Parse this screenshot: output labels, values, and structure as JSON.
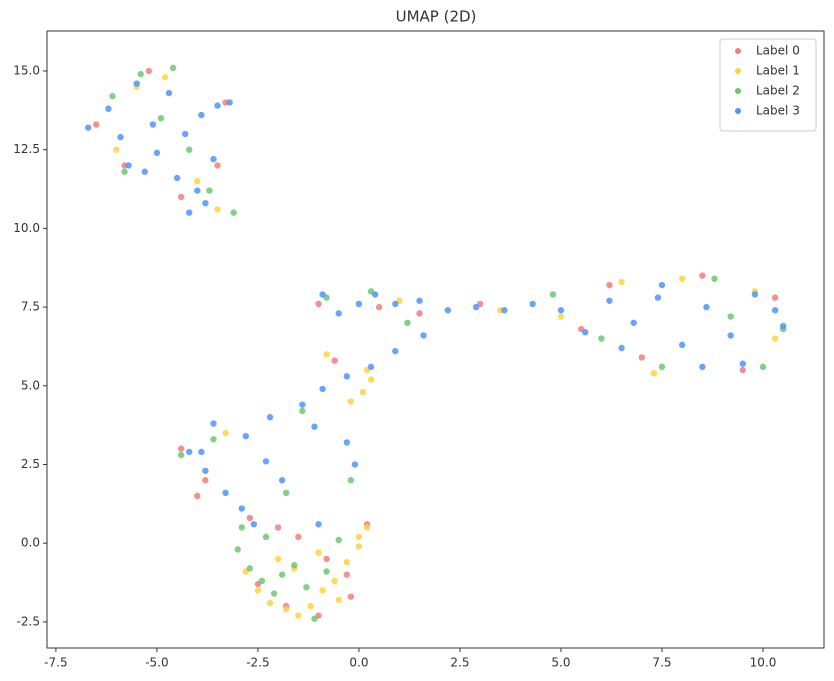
{
  "chart_data": {
    "type": "scatter",
    "title": "UMAP (2D)",
    "xlim": [
      -7.72,
      11.51
    ],
    "ylim": [
      -3.33,
      16.27
    ],
    "xticks": [
      -7.5,
      {
        "value": -5,
        "label": "-5.0"
      },
      -2.5,
      {
        "value": 0,
        "label": "0.0"
      },
      2.5,
      {
        "value": 5,
        "label": "5.0"
      },
      7.5,
      {
        "value": 10,
        "label": "10.0"
      }
    ],
    "yticks": [
      -2.5,
      {
        "value": 0,
        "label": "0.0"
      },
      2.5,
      {
        "value": 5,
        "label": "5.0"
      },
      7.5,
      {
        "value": 10,
        "label": "10.0"
      },
      12.5,
      {
        "value": 15,
        "label": "15.0"
      }
    ],
    "grid": false,
    "legend": "upper right",
    "series": [
      {
        "name": "Label 0",
        "color": "#f47c7c",
        "x": [
          -6.5,
          -5.2,
          -4.4,
          -3.3,
          -5.8,
          -1.0,
          0.5,
          1.5,
          3.0,
          5.5,
          7.0,
          8.5,
          9.5,
          10.3,
          6.2,
          -4.0,
          -3.8,
          -2.0,
          -1.5,
          -0.8,
          -0.3,
          0.2,
          -2.5,
          -1.8,
          -1.0,
          -0.2,
          -3.5,
          -4.4,
          -2.7,
          -0.6
        ],
        "values": [
          13.3,
          15.0,
          11.0,
          14.0,
          12.0,
          7.6,
          7.5,
          7.3,
          7.6,
          6.8,
          5.9,
          8.5,
          5.5,
          7.8,
          8.2,
          1.5,
          2.0,
          0.5,
          0.2,
          -0.5,
          -1.0,
          0.6,
          -1.3,
          -2.0,
          -2.3,
          -1.7,
          12.0,
          3.0,
          0.8,
          5.8
        ]
      },
      {
        "name": "Label 1",
        "color": "#ffd43b",
        "x": [
          -2.5,
          -2.2,
          -1.8,
          -1.5,
          -1.2,
          -0.9,
          -0.6,
          -0.3,
          0.0,
          0.2,
          -1.6,
          -1.0,
          -0.5,
          -2.0,
          -2.8,
          0.1,
          0.3,
          0.2,
          -0.2,
          0.0,
          -5.5,
          -4.8,
          -3.5,
          -6.0,
          -4.0,
          3.5,
          6.5,
          8.0,
          9.8,
          10.3,
          5.0,
          7.3,
          -0.8,
          1.0,
          -3.3
        ],
        "values": [
          -1.5,
          -1.9,
          -2.1,
          -2.3,
          -2.0,
          -1.5,
          -1.2,
          -0.6,
          0.2,
          0.5,
          -0.8,
          -0.3,
          -1.8,
          -0.5,
          -0.9,
          4.8,
          5.2,
          5.5,
          4.5,
          -0.1,
          14.5,
          14.8,
          10.6,
          12.5,
          11.5,
          7.4,
          8.3,
          8.4,
          8.0,
          6.5,
          7.2,
          5.4,
          6.0,
          7.7,
          3.5
        ]
      },
      {
        "name": "Label 2",
        "color": "#69c96e",
        "x": [
          -3.0,
          -2.7,
          -2.4,
          -2.1,
          -1.9,
          -1.6,
          -1.3,
          -1.1,
          -0.8,
          -2.9,
          -2.3,
          -4.4,
          -3.6,
          -1.8,
          -0.5,
          -6.1,
          -5.4,
          -4.9,
          -4.2,
          -3.7,
          -3.1,
          -5.8,
          -4.6,
          -0.8,
          0.3,
          1.2,
          4.8,
          6.0,
          7.5,
          8.8,
          10.0,
          10.5,
          9.2,
          -1.4,
          -0.2
        ],
        "values": [
          -0.2,
          -0.8,
          -1.2,
          -1.6,
          -1.0,
          -0.7,
          -1.4,
          -2.4,
          -0.9,
          0.5,
          0.2,
          2.8,
          3.3,
          1.6,
          0.1,
          14.2,
          14.9,
          13.5,
          12.5,
          11.2,
          10.5,
          11.8,
          15.1,
          7.8,
          8.0,
          7.0,
          7.9,
          6.5,
          5.6,
          8.4,
          5.6,
          6.8,
          7.2,
          4.2,
          2.0
        ]
      },
      {
        "name": "Label 3",
        "color": "#4d94ff",
        "x": [
          -6.7,
          -6.2,
          -5.9,
          -5.5,
          -5.1,
          -4.7,
          -4.3,
          -3.9,
          -3.5,
          -3.2,
          -5.7,
          -5.0,
          -4.5,
          -4.0,
          -3.6,
          -5.3,
          -4.2,
          -3.8,
          -0.9,
          -0.5,
          0.0,
          0.4,
          0.9,
          1.5,
          2.2,
          2.9,
          3.6,
          4.3,
          5.0,
          5.6,
          6.2,
          6.8,
          7.4,
          8.0,
          8.6,
          9.2,
          9.8,
          10.3,
          10.5,
          6.5,
          7.5,
          8.5,
          9.5,
          1.6,
          0.9,
          0.3,
          -0.3,
          -0.9,
          -1.4,
          -1.1,
          -0.3,
          -0.1,
          -4.2,
          -3.8,
          -3.3,
          -2.8,
          -2.3,
          -1.9,
          -3.6,
          -2.9,
          -2.2,
          -1.0,
          -2.6,
          -3.9
        ],
        "values": [
          13.2,
          13.8,
          12.9,
          14.6,
          13.3,
          14.3,
          13.0,
          13.6,
          13.9,
          14.0,
          12.0,
          12.4,
          11.6,
          11.2,
          12.2,
          11.8,
          10.5,
          10.8,
          7.9,
          7.3,
          7.6,
          7.9,
          7.6,
          7.7,
          7.4,
          7.5,
          7.4,
          7.6,
          7.4,
          6.7,
          7.7,
          7.0,
          7.8,
          6.3,
          7.5,
          6.6,
          7.9,
          7.4,
          6.9,
          6.2,
          8.2,
          5.6,
          5.7,
          6.6,
          6.1,
          5.6,
          5.3,
          4.9,
          4.4,
          3.7,
          3.2,
          2.5,
          2.9,
          2.3,
          1.6,
          3.4,
          2.6,
          2.0,
          3.8,
          1.1,
          4.0,
          0.6,
          0.6,
          2.9
        ]
      }
    ]
  }
}
